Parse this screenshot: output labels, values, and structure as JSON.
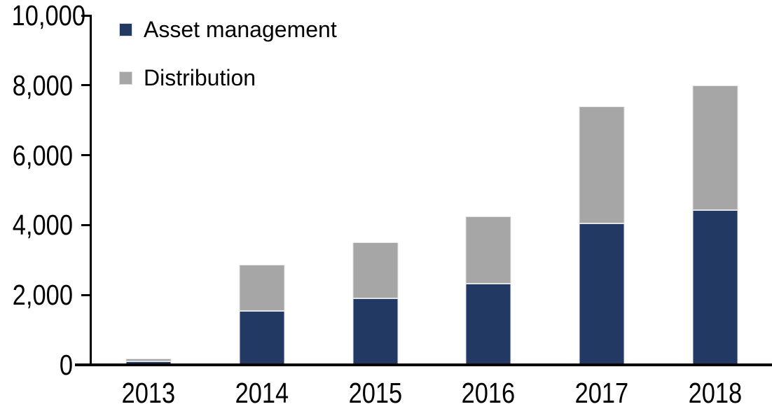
{
  "chart_data": {
    "type": "bar",
    "stacked": true,
    "title": "",
    "xlabel": "",
    "ylabel": "",
    "categories": [
      "2013",
      "2014",
      "2015",
      "2016",
      "2017",
      "2018"
    ],
    "series": [
      {
        "name": "Asset management",
        "color": "#223A63",
        "values": [
          100,
          1550,
          1900,
          2325,
          4050,
          4425
        ]
      },
      {
        "name": "Distribution",
        "color": "#A6A6A6",
        "values": [
          90,
          1325,
          1600,
          1925,
          3350,
          3575
        ]
      }
    ],
    "totals": [
      190,
      2875,
      3500,
      4250,
      7400,
      8000
    ],
    "ylim": [
      0,
      10000
    ],
    "yticks": [
      {
        "value": 0,
        "label": "0"
      },
      {
        "value": 2000,
        "label": "2,000"
      },
      {
        "value": 4000,
        "label": "4,000"
      },
      {
        "value": 6000,
        "label": "6,000"
      },
      {
        "value": 8000,
        "label": "8,000"
      },
      {
        "value": 10000,
        "label": "10,000"
      }
    ],
    "grid": false,
    "legend_position": "top-left",
    "colors": {
      "axis": "#000000",
      "background": "#FFFFFF",
      "bar_border": "#E3E3E3"
    }
  }
}
